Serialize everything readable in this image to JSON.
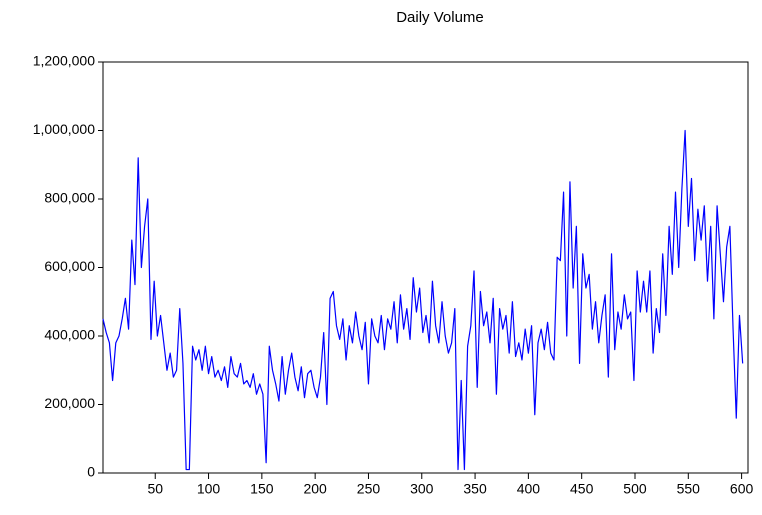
{
  "chart_data": {
    "type": "line",
    "title": "Daily Volume",
    "x": [
      1,
      4,
      7,
      10,
      13,
      16,
      19,
      22,
      25,
      28,
      31,
      34,
      37,
      40,
      43,
      46,
      49,
      52,
      55,
      58,
      61,
      64,
      67,
      70,
      73,
      76,
      79,
      82,
      85,
      88,
      91,
      94,
      97,
      100,
      103,
      106,
      109,
      112,
      115,
      118,
      121,
      124,
      127,
      130,
      133,
      136,
      139,
      142,
      145,
      148,
      151,
      154,
      157,
      160,
      163,
      166,
      169,
      172,
      175,
      178,
      181,
      184,
      187,
      190,
      193,
      196,
      199,
      202,
      205,
      208,
      211,
      214,
      217,
      220,
      223,
      226,
      229,
      232,
      235,
      238,
      241,
      244,
      247,
      250,
      253,
      256,
      259,
      262,
      265,
      268,
      271,
      274,
      277,
      280,
      283,
      286,
      289,
      292,
      295,
      298,
      301,
      304,
      307,
      310,
      313,
      316,
      319,
      322,
      325,
      328,
      331,
      334,
      337,
      340,
      343,
      346,
      349,
      352,
      355,
      358,
      361,
      364,
      367,
      370,
      373,
      376,
      379,
      382,
      385,
      388,
      391,
      394,
      397,
      400,
      403,
      406,
      409,
      412,
      415,
      418,
      421,
      424,
      427,
      430,
      433,
      436,
      439,
      442,
      445,
      448,
      451,
      454,
      457,
      460,
      463,
      466,
      469,
      472,
      475,
      478,
      481,
      484,
      487,
      490,
      493,
      496,
      499,
      502,
      505,
      508,
      511,
      514,
      517,
      520,
      523,
      526,
      529,
      532,
      535,
      538,
      541,
      544,
      547,
      550,
      553,
      556,
      559,
      562,
      565,
      568,
      571,
      574,
      577,
      580,
      583,
      586,
      589,
      592,
      595,
      598,
      601
    ],
    "series": [
      {
        "color": "#0000ff",
        "values": [
          450000,
          410000,
          380000,
          270000,
          380000,
          400000,
          450000,
          510000,
          420000,
          680000,
          550000,
          920000,
          600000,
          720000,
          800000,
          390000,
          560000,
          400000,
          460000,
          380000,
          300000,
          350000,
          280000,
          300000,
          480000,
          320000,
          10000,
          10000,
          370000,
          330000,
          360000,
          300000,
          370000,
          290000,
          340000,
          280000,
          300000,
          270000,
          310000,
          250000,
          340000,
          290000,
          280000,
          320000,
          260000,
          270000,
          250000,
          290000,
          230000,
          260000,
          230000,
          30000,
          370000,
          300000,
          260000,
          210000,
          340000,
          230000,
          300000,
          350000,
          280000,
          240000,
          310000,
          220000,
          290000,
          300000,
          250000,
          220000,
          280000,
          410000,
          200000,
          510000,
          530000,
          430000,
          390000,
          450000,
          330000,
          430000,
          380000,
          470000,
          400000,
          360000,
          440000,
          260000,
          450000,
          400000,
          380000,
          460000,
          360000,
          450000,
          420000,
          500000,
          380000,
          520000,
          420000,
          480000,
          390000,
          570000,
          470000,
          540000,
          410000,
          460000,
          380000,
          560000,
          430000,
          380000,
          500000,
          400000,
          350000,
          380000,
          480000,
          10000,
          270000,
          10000,
          370000,
          430000,
          590000,
          250000,
          530000,
          430000,
          470000,
          380000,
          510000,
          230000,
          480000,
          420000,
          460000,
          350000,
          500000,
          340000,
          380000,
          330000,
          420000,
          350000,
          430000,
          170000,
          380000,
          420000,
          360000,
          440000,
          350000,
          330000,
          630000,
          620000,
          820000,
          400000,
          850000,
          540000,
          720000,
          320000,
          640000,
          540000,
          580000,
          420000,
          500000,
          380000,
          460000,
          520000,
          280000,
          640000,
          360000,
          470000,
          420000,
          520000,
          450000,
          470000,
          270000,
          590000,
          470000,
          560000,
          470000,
          590000,
          350000,
          480000,
          410000,
          640000,
          460000,
          720000,
          580000,
          820000,
          600000,
          830000,
          1000000,
          720000,
          860000,
          620000,
          770000,
          680000,
          780000,
          560000,
          720000,
          450000,
          780000,
          640000,
          500000,
          660000,
          720000,
          420000,
          160000,
          460000,
          320000
        ]
      }
    ],
    "xlim": [
      1,
      606
    ],
    "xticks": [
      50,
      100,
      150,
      200,
      250,
      300,
      350,
      400,
      450,
      500,
      550,
      600
    ],
    "ylim": [
      0,
      1200000
    ],
    "yticks": [
      0,
      {
        "value": 200000,
        "label": "200,000"
      },
      {
        "value": 400000,
        "label": "400,000"
      },
      {
        "value": 600000,
        "label": "600,000"
      },
      {
        "value": 800000,
        "label": "800,000"
      },
      {
        "value": 1000000,
        "label": "1,000,000"
      },
      {
        "value": 1200000,
        "label": "1,200,000"
      }
    ],
    "grid": false
  }
}
